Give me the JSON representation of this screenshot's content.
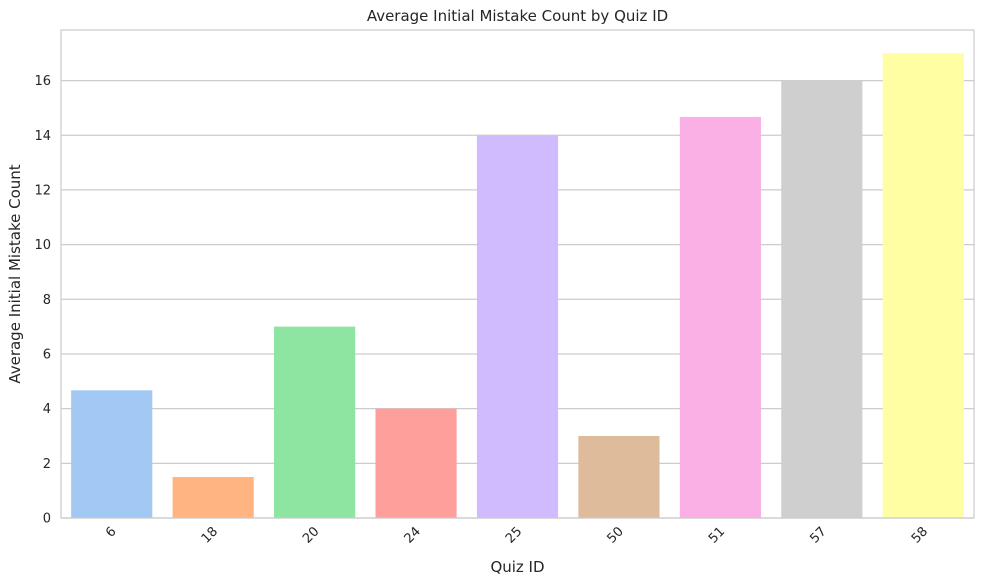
{
  "chart_data": {
    "type": "bar",
    "title": "Average Initial Mistake Count by Quiz ID",
    "xlabel": "Quiz ID",
    "ylabel": "Average Initial Mistake Count",
    "categories": [
      "6",
      "18",
      "20",
      "24",
      "25",
      "50",
      "51",
      "57",
      "58"
    ],
    "values": [
      4.67,
      1.5,
      7.0,
      4.0,
      14.0,
      3.0,
      14.67,
      16.0,
      17.0
    ],
    "colors": [
      "#a1c9f4",
      "#ffb482",
      "#8de5a1",
      "#ff9f9b",
      "#d0bbff",
      "#debb9b",
      "#fab0e4",
      "#cfcfcf",
      "#fffea3"
    ],
    "ylim": [
      0,
      17.85
    ],
    "yticks": [
      "0",
      "2",
      "4",
      "6",
      "8",
      "10",
      "12",
      "14",
      "16"
    ],
    "ytick_values": [
      0,
      2,
      4,
      6,
      8,
      10,
      12,
      14,
      16
    ],
    "grid": true,
    "xtick_rotation": 45
  }
}
